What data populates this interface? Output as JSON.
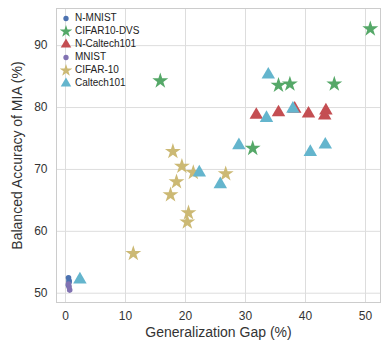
{
  "chart_data": {
    "type": "scatter",
    "x_label": "Generalization Gap (%)",
    "y_label": "Balanced Accuracy of MIA (%)",
    "xlim": [
      -1.5,
      52.5
    ],
    "xticks": [
      0,
      10,
      20,
      30,
      40,
      50
    ],
    "ylim": [
      48.5,
      96
    ],
    "yticks": [
      50,
      60,
      70,
      80,
      90
    ],
    "grid": true,
    "legend": "upper left",
    "series": [
      {
        "name": "N-MNIST",
        "color": "#4c72b0",
        "marker": "circle",
        "x": [
          0.5,
          0.6,
          0.5,
          0.6
        ],
        "values": [
          52.5,
          51.8,
          51.3,
          52.0
        ]
      },
      {
        "name": "CIFAR10-DVS",
        "color": "#55a868",
        "marker": "star",
        "x": [
          15.8,
          31.2,
          35.5,
          37.4,
          44.8,
          50.8
        ],
        "values": [
          84.3,
          73.4,
          83.6,
          83.8,
          83.8,
          92.7
        ]
      },
      {
        "name": "N-Caltech101",
        "color": "#c44e52",
        "marker": "triangle",
        "x": [
          31.8,
          35.5,
          38.2,
          40.5,
          43.2,
          43.4
        ],
        "values": [
          78.8,
          79.2,
          79.8,
          79.0,
          78.7,
          79.5
        ]
      },
      {
        "name": "MNIST",
        "color": "#8172b2",
        "marker": "circle",
        "x": [
          0.6,
          0.7,
          0.5
        ],
        "values": [
          51.0,
          50.5,
          51.5
        ]
      },
      {
        "name": "CIFAR-10",
        "color": "#ccb974",
        "marker": "star",
        "x": [
          11.3,
          17.5,
          17.9,
          18.5,
          19.4,
          20.3,
          20.5,
          21.3,
          26.7
        ],
        "values": [
          56.4,
          65.9,
          72.9,
          68.0,
          70.5,
          61.5,
          63.0,
          69.5,
          69.3
        ]
      },
      {
        "name": "Caltech101",
        "color": "#64b5cd",
        "marker": "triangle",
        "x": [
          2.4,
          22.3,
          25.8,
          28.9,
          33.8,
          33.5,
          37.9,
          40.8,
          43.3
        ],
        "values": [
          52.2,
          69.5,
          67.6,
          73.9,
          85.3,
          78.3,
          79.8,
          72.8,
          74.0
        ]
      }
    ]
  }
}
